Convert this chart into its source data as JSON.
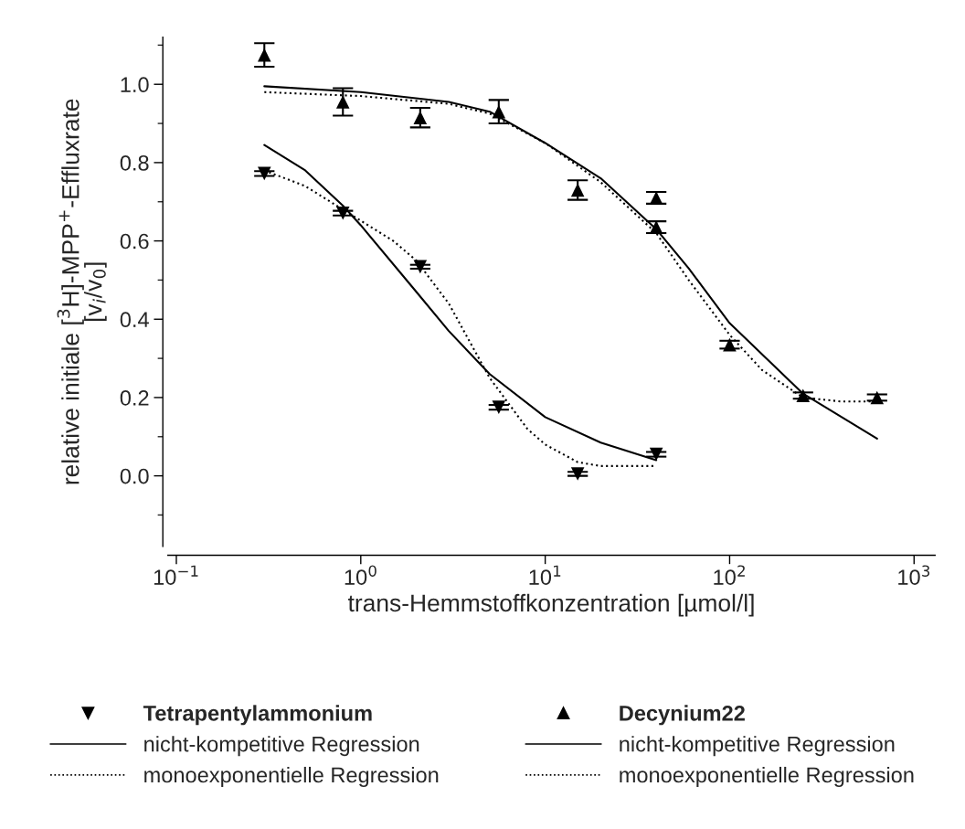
{
  "chart_data": {
    "type": "scatter",
    "xlabel": "trans-Hemmstoffkonzentration [µmol/l]",
    "ylabel": "relative initiale [$^{3}$H]-MPP$^{+}$-Effluxrate\n[v$_{i}$/v$_{0}$]",
    "log": "x",
    "xlim": [
      0.09,
      1300
    ],
    "xticks": [
      {
        "value": 0.1,
        "label": "10$^{−1}$"
      },
      {
        "value": 1,
        "label": "10$^{0}$"
      },
      {
        "value": 10,
        "label": "10$^{1}$"
      },
      {
        "value": 100,
        "label": "10$^{2}$"
      },
      {
        "value": 1000,
        "label": "10$^{3}$"
      }
    ],
    "ylim": [
      -0.18,
      1.12
    ],
    "yticks": [
      {
        "value": -0.1,
        "label": null
      },
      {
        "value": 0.0,
        "label": "0.0"
      },
      {
        "value": 0.1,
        "label": null
      },
      {
        "value": 0.2,
        "label": "0.2"
      },
      {
        "value": 0.3,
        "label": null
      },
      {
        "value": 0.4,
        "label": "0.4"
      },
      {
        "value": 0.5,
        "label": null
      },
      {
        "value": 0.6,
        "label": "0.6"
      },
      {
        "value": 0.7,
        "label": null
      },
      {
        "value": 0.8,
        "label": "0.8"
      },
      {
        "value": 0.9,
        "label": null
      },
      {
        "value": 1.0,
        "label": "1.0"
      },
      {
        "value": 1.1,
        "label": null
      }
    ],
    "grid": false,
    "legend": "bottom",
    "series": [
      {
        "name": "Tetrapentylammonium",
        "type": "scatter",
        "marker": "triangle_down",
        "color": "#000000",
        "x": [
          0.3,
          0.8,
          2.1,
          5.6,
          15,
          40
        ],
        "values": [
          0.772,
          0.671,
          0.534,
          0.175,
          0.005,
          0.055
        ],
        "errors": [
          0.006,
          0.006,
          0.005,
          0.006,
          0.005,
          0.006
        ]
      },
      {
        "name": "nicht-kompetitive Regression",
        "type": "line",
        "line_style": "solid",
        "color": "#000000",
        "x": [
          0.3,
          0.5,
          0.8,
          1,
          2,
          3,
          5,
          10,
          20,
          40
        ],
        "values": [
          0.845,
          0.78,
          0.69,
          0.64,
          0.47,
          0.37,
          0.26,
          0.15,
          0.085,
          0.04
        ]
      },
      {
        "name": "monoexponentielle Regression",
        "type": "line",
        "line_style": "dotted",
        "color": "#000000",
        "x": [
          0.3,
          0.5,
          0.8,
          1.5,
          2,
          3,
          5,
          8,
          10,
          15,
          20,
          40
        ],
        "values": [
          0.78,
          0.74,
          0.68,
          0.6,
          0.55,
          0.44,
          0.25,
          0.12,
          0.08,
          0.035,
          0.025,
          0.025
        ]
      },
      {
        "name": "Decynium22",
        "type": "scatter",
        "marker": "triangle",
        "color": "#000000",
        "x": [
          0.3,
          0.8,
          2.1,
          5.6,
          15,
          40,
          40,
          100,
          250,
          630
        ],
        "values": [
          1.075,
          0.955,
          0.915,
          0.93,
          0.73,
          0.71,
          0.635,
          0.335,
          0.205,
          0.2
        ],
        "errors": [
          0.03,
          0.035,
          0.025,
          0.03,
          0.025,
          0.015,
          0.015,
          0.01,
          0.008,
          0.008
        ]
      },
      {
        "name": "nicht-kompetitive Regression",
        "type": "line",
        "line_style": "solid",
        "color": "#000000",
        "x": [
          0.3,
          1,
          3,
          5,
          10,
          20,
          40,
          60,
          100,
          250,
          630
        ],
        "values": [
          0.995,
          0.98,
          0.955,
          0.93,
          0.85,
          0.76,
          0.63,
          0.53,
          0.39,
          0.21,
          0.095
        ]
      },
      {
        "name": "monoexponentielle Regression",
        "type": "line",
        "line_style": "dotted",
        "color": "#000000",
        "x": [
          0.3,
          1,
          3,
          5,
          10,
          20,
          40,
          60,
          100,
          150,
          250,
          400,
          630
        ],
        "values": [
          0.98,
          0.97,
          0.95,
          0.925,
          0.85,
          0.75,
          0.62,
          0.5,
          0.36,
          0.27,
          0.2,
          0.19,
          0.19
        ]
      }
    ]
  }
}
